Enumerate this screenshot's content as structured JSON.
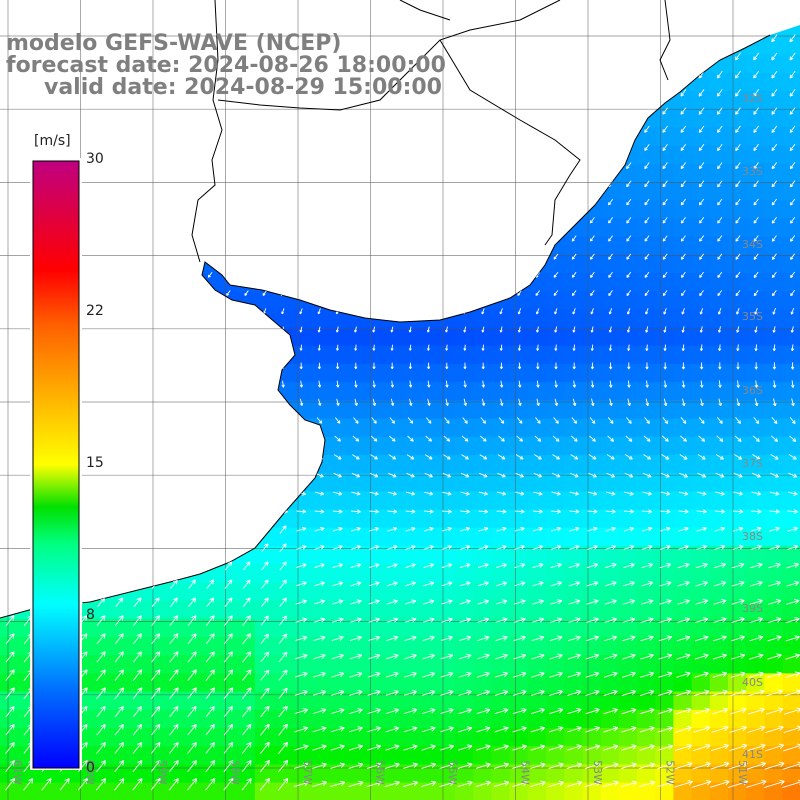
{
  "title": {
    "model": "modelo GEFS-WAVE (NCEP)",
    "forecast": "forecast date: 2024-08-26 18:00:00",
    "valid": "valid date: 2024-08-29 15:00:00"
  },
  "colorbar": {
    "unit": "[m/s]",
    "ticks": [
      "30",
      "22",
      "15",
      "8",
      "0"
    ],
    "colors": [
      "#0000ff",
      "#0080ff",
      "#00ffff",
      "#00ff80",
      "#00ff00",
      "#ffff00",
      "#ff8000",
      "#ff0000",
      "#c00080"
    ]
  },
  "axes": {
    "lat_labels": [
      "32S",
      "33S",
      "34S",
      "35S",
      "36S",
      "37S",
      "38S",
      "39S",
      "40S",
      "41S"
    ],
    "lon_labels": [
      "61W",
      "60W",
      "59W",
      "58W",
      "57W",
      "56W",
      "55W",
      "54W",
      "53W",
      "52W",
      "51W"
    ]
  }
}
